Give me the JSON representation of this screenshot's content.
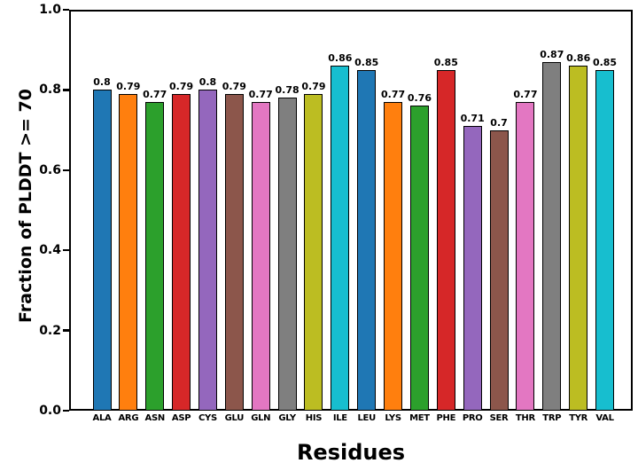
{
  "figure": {
    "background_color": "#ffffff",
    "text_color": "#000000",
    "spine_color": "#000000"
  },
  "chart_data": {
    "type": "bar",
    "title": "",
    "xlabel": "Residues",
    "ylabel": "Fraction of PLDDT >= 70",
    "categories": [
      "ALA",
      "ARG",
      "ASN",
      "ASP",
      "CYS",
      "GLU",
      "GLN",
      "GLY",
      "HIS",
      "ILE",
      "LEU",
      "LYS",
      "MET",
      "PHE",
      "PRO",
      "SER",
      "THR",
      "TRP",
      "TYR",
      "VAL"
    ],
    "values": [
      0.8,
      0.79,
      0.77,
      0.79,
      0.8,
      0.79,
      0.77,
      0.78,
      0.79,
      0.86,
      0.85,
      0.77,
      0.76,
      0.85,
      0.71,
      0.7,
      0.77,
      0.87,
      0.86,
      0.85
    ],
    "value_labels": [
      "0.8",
      "0.79",
      "0.77",
      "0.79",
      "0.8",
      "0.79",
      "0.77",
      "0.78",
      "0.79",
      "0.86",
      "0.85",
      "0.77",
      "0.76",
      "0.85",
      "0.71",
      "0.7",
      "0.77",
      "0.87",
      "0.86",
      "0.85"
    ],
    "bar_colors": [
      "#1f77b4",
      "#ff7f0e",
      "#2ca02c",
      "#d62728",
      "#9467bd",
      "#8c564b",
      "#e377c2",
      "#7f7f7f",
      "#bcbd22",
      "#17becf",
      "#1f77b4",
      "#ff7f0e",
      "#2ca02c",
      "#d62728",
      "#9467bd",
      "#8c564b",
      "#e377c2",
      "#7f7f7f",
      "#bcbd22",
      "#17becf"
    ],
    "bar_edge_color": "#000000",
    "ylim": [
      0.0,
      1.0
    ],
    "ytick_labels": [
      "0.0",
      "0.2",
      "0.4",
      "0.6",
      "0.8",
      "1.0"
    ],
    "ytick_values": [
      0.0,
      0.2,
      0.4,
      0.6,
      0.8,
      1.0
    ],
    "grid": "off",
    "legend": "none"
  }
}
